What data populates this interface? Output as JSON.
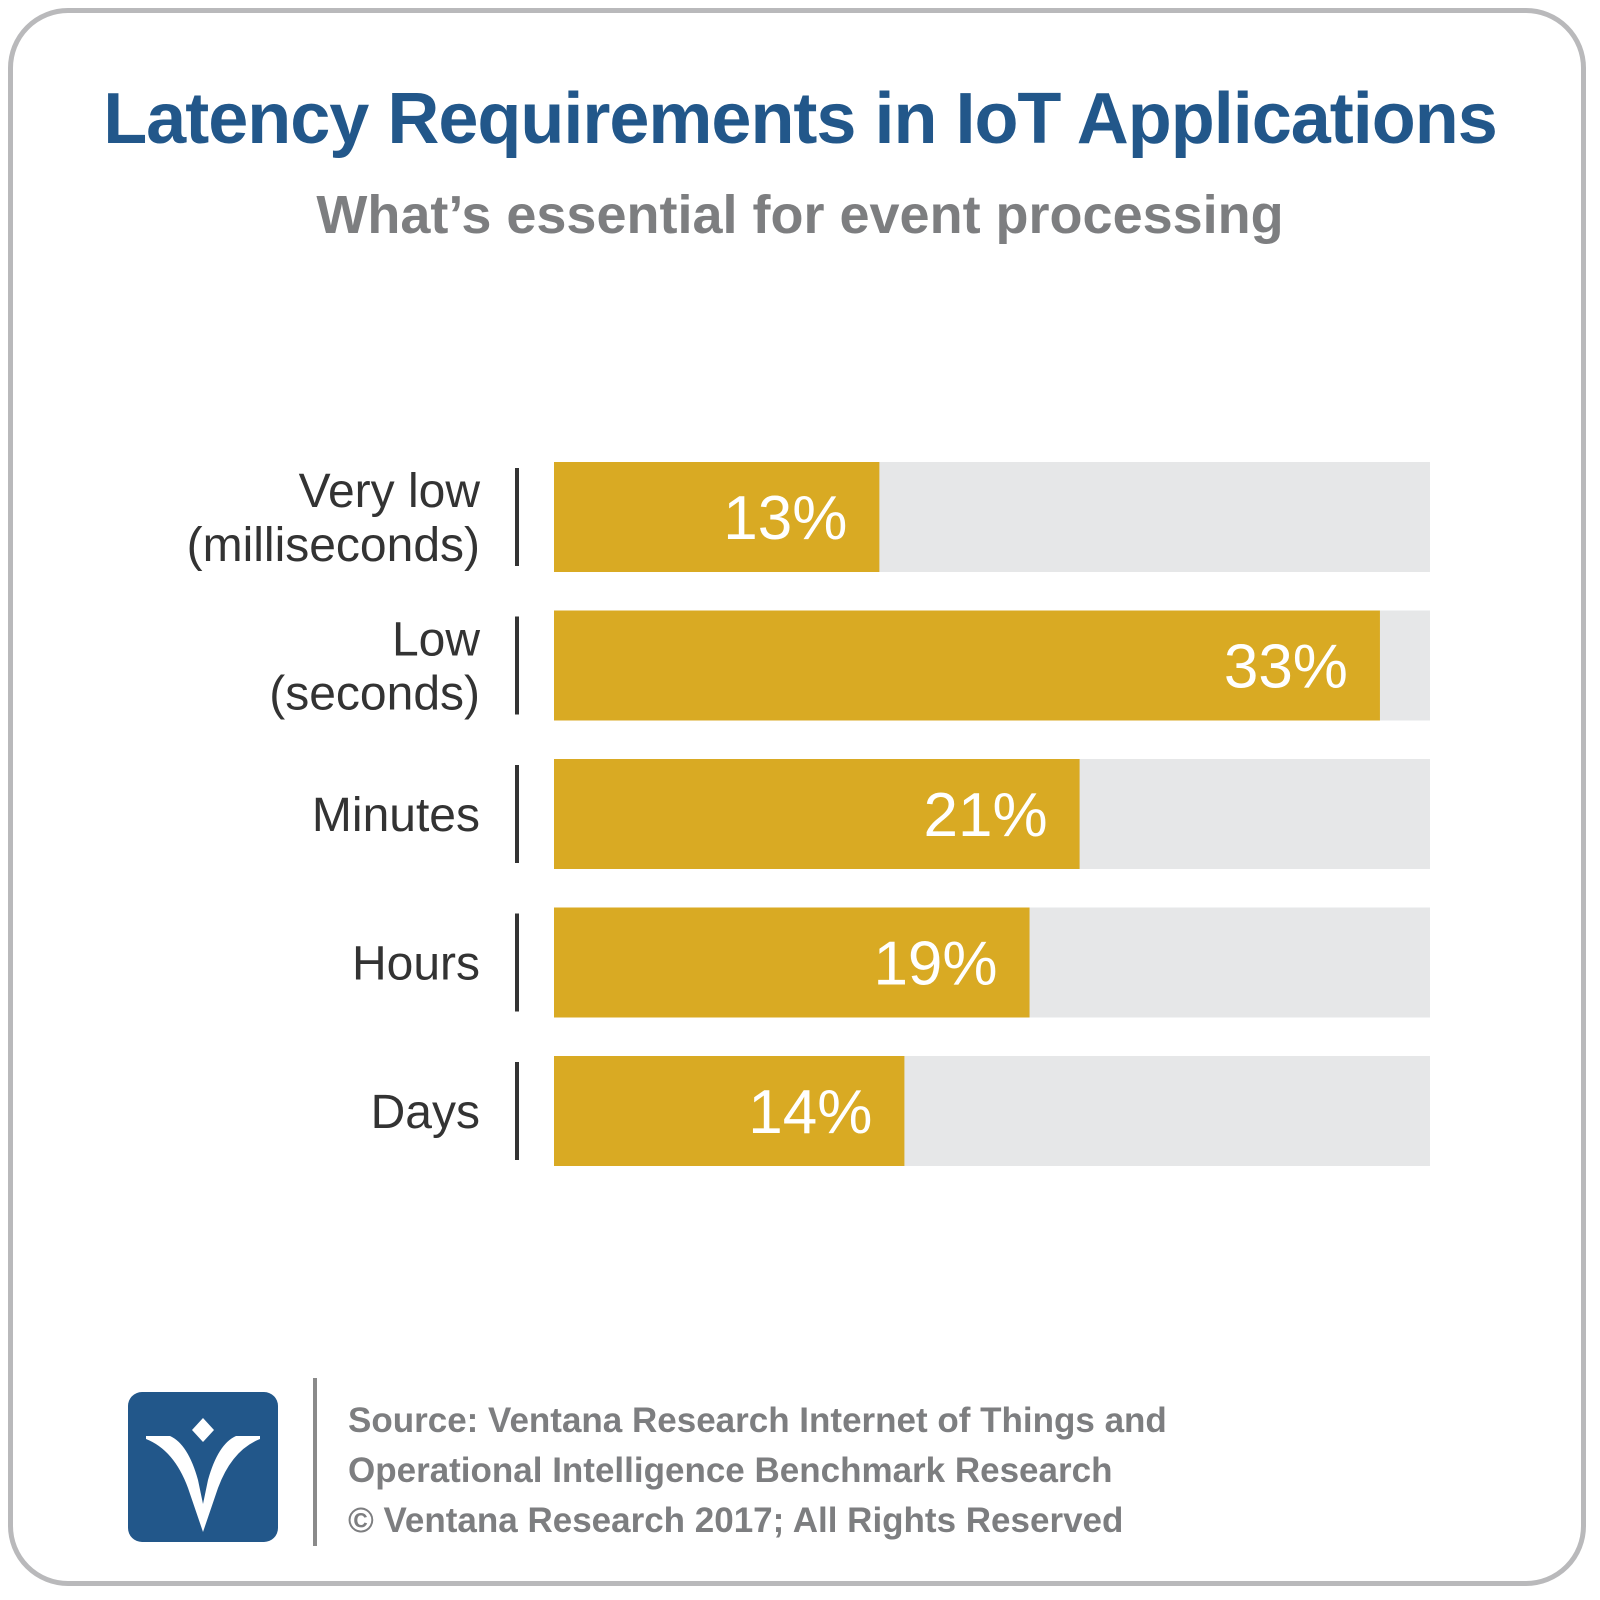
{
  "header": {
    "title": "Latency Requirements in IoT Applications",
    "subtitle": "What’s essential for event processing"
  },
  "chart_data": {
    "type": "bar",
    "orientation": "horizontal",
    "categories": [
      [
        "Very low",
        "(milliseconds)"
      ],
      [
        "Low",
        "(seconds)"
      ],
      [
        "Minutes"
      ],
      [
        "Hours"
      ],
      [
        "Days"
      ]
    ],
    "values": [
      13,
      33,
      21,
      19,
      14
    ],
    "value_labels": [
      "13%",
      "33%",
      "21%",
      "19%",
      "14%"
    ],
    "xlim": [
      0,
      35
    ],
    "grid": false,
    "colors": {
      "bar": "#d9aa23",
      "track": "#e6e7e8",
      "separator": "#333333"
    }
  },
  "footer": {
    "source_lines": [
      "Source: Ventana Research Internet of Things and",
      "Operational Intelligence Benchmark Research",
      "© Ventana Research 2017; All Rights Reserved"
    ],
    "logo_icon": "ventana-v-logo"
  }
}
